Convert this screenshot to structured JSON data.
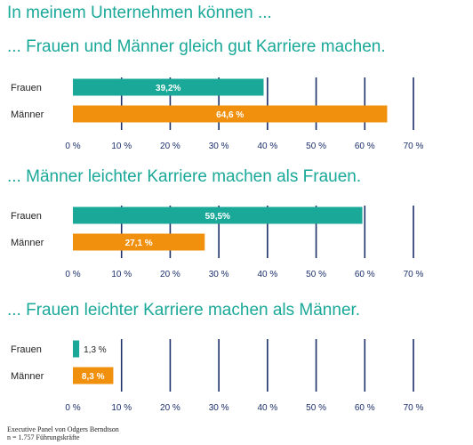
{
  "main_title": "In meinem Unternehmen können ...",
  "footer": {
    "line1": "Executive Panel von Odgers Berndtson",
    "line2": "n = 1.757 Führungskräfte"
  },
  "colors": {
    "teal": "#1aa898",
    "orange": "#f0900d",
    "grid": "#1b2f6b"
  },
  "chart_data": [
    {
      "type": "bar",
      "orientation": "horizontal",
      "title": "... Frauen und Männer gleich gut Karriere machen.",
      "categories": [
        "Frauen",
        "Männer"
      ],
      "values": [
        39.2,
        64.6
      ],
      "value_labels": [
        "39,2%",
        "64,6 %"
      ],
      "colors": [
        "#1aa898",
        "#f0900d"
      ],
      "xlim": [
        0,
        70
      ],
      "x_ticks": [
        "0 %",
        "10 %",
        "20 %",
        "30 %",
        "40 %",
        "50 %",
        "60 %",
        "70 %"
      ],
      "grid": true
    },
    {
      "type": "bar",
      "orientation": "horizontal",
      "title": "... Männer leichter Karriere machen als Frauen.",
      "categories": [
        "Frauen",
        "Männer"
      ],
      "values": [
        59.5,
        27.1
      ],
      "value_labels": [
        "59,5%",
        "27,1 %"
      ],
      "colors": [
        "#1aa898",
        "#f0900d"
      ],
      "xlim": [
        0,
        70
      ],
      "x_ticks": [
        "0 %",
        "10 %",
        "20 %",
        "30 %",
        "40 %",
        "50 %",
        "60 %",
        "70 %"
      ],
      "grid": true
    },
    {
      "type": "bar",
      "orientation": "horizontal",
      "title": "... Frauen leichter Karriere machen als Männer.",
      "categories": [
        "Frauen",
        "Männer"
      ],
      "values": [
        1.3,
        8.3
      ],
      "value_labels": [
        "1,3 %",
        "8,3 %"
      ],
      "value_label_position": [
        "outside",
        "inside"
      ],
      "colors": [
        "#1aa898",
        "#f0900d"
      ],
      "xlim": [
        0,
        70
      ],
      "x_ticks": [
        "0 %",
        "10 %",
        "20 %",
        "30 %",
        "40 %",
        "50 %",
        "60 %",
        "70 %"
      ],
      "grid": true
    }
  ]
}
